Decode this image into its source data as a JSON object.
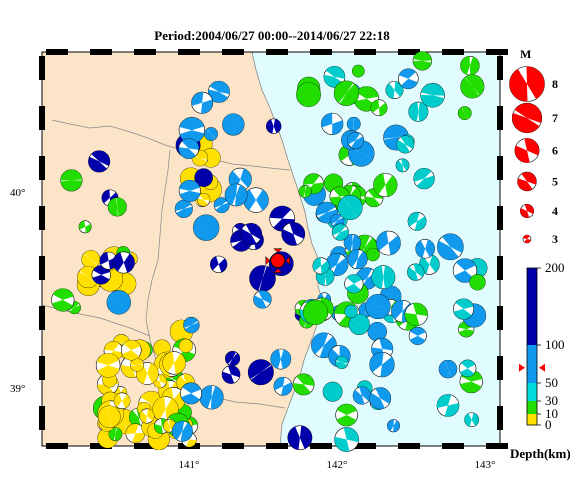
{
  "title": "Period:2004/06/27 00:00--2014/06/27 22:18",
  "map": {
    "longitude_labels": [
      "141°",
      "142°",
      "143°"
    ],
    "latitude_labels": [
      "40°",
      "39°"
    ],
    "land_color": "#fbe4c8",
    "sea_color": "#e0fcff",
    "focal_marker": {
      "longitude": 141.6,
      "latitude": 39.65,
      "color": "#ff0000",
      "magnitude": 6
    }
  },
  "magnitude_legend": {
    "title": "M",
    "items": [
      {
        "label": "8",
        "magnitude": 8
      },
      {
        "label": "7",
        "magnitude": 7
      },
      {
        "label": "6",
        "magnitude": 6
      },
      {
        "label": "5",
        "magnitude": 5
      },
      {
        "label": "4",
        "magnitude": 4
      },
      {
        "label": "3",
        "magnitude": 3
      }
    ]
  },
  "depth_legend": {
    "title": "Depth(km)",
    "ticks": [
      "200",
      "100",
      "50",
      "30",
      "10",
      "0"
    ],
    "bands": [
      {
        "from": 0,
        "to": 10,
        "color": "#ffe000"
      },
      {
        "from": 10,
        "to": 30,
        "color": "#22dd00"
      },
      {
        "from": 30,
        "to": 50,
        "color": "#00dddd"
      },
      {
        "from": 50,
        "to": 100,
        "color": "#1199ee"
      },
      {
        "from": 100,
        "to": 200,
        "color": "#0000aa"
      }
    ],
    "marker_depth": 70
  },
  "colors": {
    "shallow": "#ffe000",
    "crust": "#22dd00",
    "mid": "#00cccc",
    "deep": "#1199ee",
    "very_deep": "#0000aa",
    "mechanism": "#ff0000"
  }
}
